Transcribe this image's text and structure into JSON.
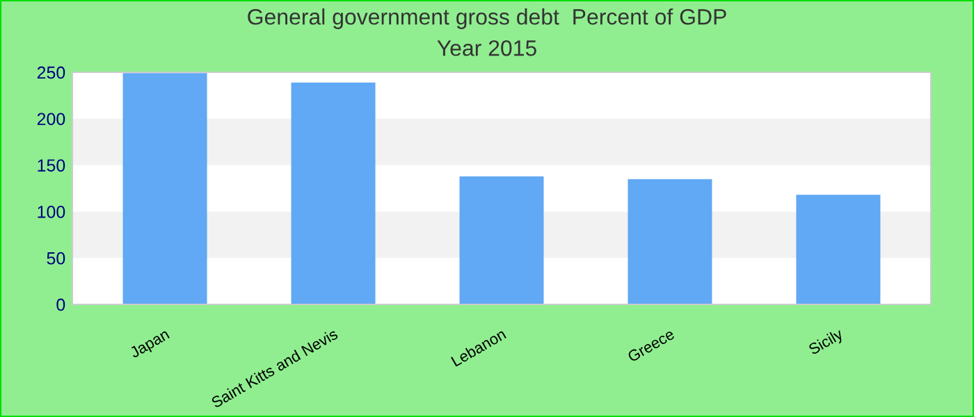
{
  "chart_data": {
    "type": "bar",
    "title": "General government gross debt  Percent of GDP",
    "subtitle": "Year 2015",
    "categories": [
      "Japan",
      "Saint Kitts and Nevis",
      "Lebanon",
      "Greece",
      "Sicily"
    ],
    "values": [
      249,
      239,
      138,
      135,
      118
    ],
    "color": "#61a8f5",
    "ylim": [
      0,
      250
    ],
    "yticks": [
      0,
      50,
      100,
      150,
      200,
      250
    ],
    "grid": false,
    "bands": [
      {
        "axis": "y",
        "from": 50,
        "to": 100,
        "color": "#f2f2f2"
      },
      {
        "axis": "y",
        "from": 150,
        "to": 200,
        "color": "#f2f2f2"
      }
    ]
  }
}
